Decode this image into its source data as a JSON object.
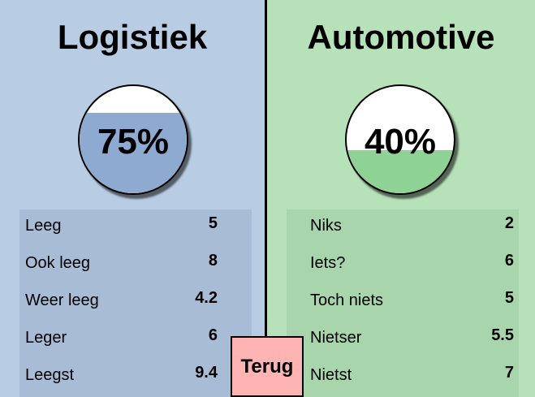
{
  "panels": [
    {
      "title": "Logistiek",
      "gauge": {
        "percent_label": "75%",
        "fill_fraction": 0.75,
        "fill_color": "#8eaad0"
      },
      "rows": [
        {
          "label": "Leeg",
          "value": "5"
        },
        {
          "label": "Ook leeg",
          "value": "8"
        },
        {
          "label": "Weer leeg",
          "value": "4.2"
        },
        {
          "label": "Leger",
          "value": "6"
        },
        {
          "label": "Leegst",
          "value": "9.4"
        }
      ]
    },
    {
      "title": "Automotive",
      "gauge": {
        "percent_label": "40%",
        "fill_fraction": 0.4,
        "fill_color": "#8fd295"
      },
      "rows": [
        {
          "label": "Niks",
          "value": "2"
        },
        {
          "label": "Iets?",
          "value": "6"
        },
        {
          "label": "Toch niets",
          "value": "5"
        },
        {
          "label": "Nietser",
          "value": "5.5"
        },
        {
          "label": "Nietst",
          "value": "7"
        }
      ]
    }
  ],
  "back_button": {
    "label": "Terug"
  }
}
